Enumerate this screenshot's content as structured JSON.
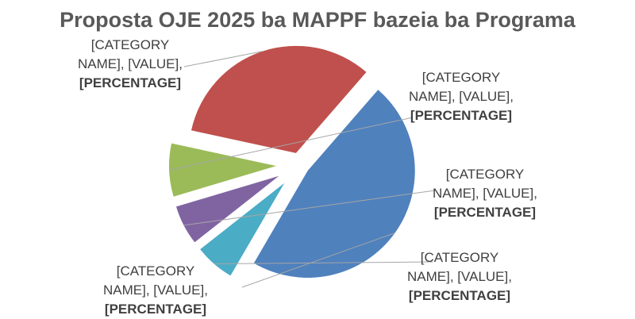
{
  "chart_data": {
    "type": "pie",
    "title": "Proposta OJE 2025 ba MAPPF bazeia ba Programa",
    "slices": [
      {
        "color": "#4F81BD",
        "value": 47,
        "label_line1": "[CATEGORY",
        "label_line2": "NAME], [VALUE],",
        "label_line3": "[PERCENTAGE]"
      },
      {
        "color": "#4BACC6",
        "value": 6,
        "label_line1": "[CATEGORY",
        "label_line2": "NAME], [VALUE],",
        "label_line3": "[PERCENTAGE]"
      },
      {
        "color": "#8064A2",
        "value": 6,
        "label_line1": "[CATEGORY",
        "label_line2": "NAME], [VALUE],",
        "label_line3": "[PERCENTAGE]"
      },
      {
        "color": "#9BBB59",
        "value": 8,
        "label_line1": "[CATEGORY",
        "label_line2": "NAME], [VALUE],",
        "label_line3": "[PERCENTAGE]"
      },
      {
        "color": "#C0504D",
        "value": 33,
        "label_line1": "[CATEGORY",
        "label_line2": "NAME], [VALUE],",
        "label_line3": "[PERCENTAGE]"
      }
    ],
    "exploded": true,
    "legend": "none"
  }
}
